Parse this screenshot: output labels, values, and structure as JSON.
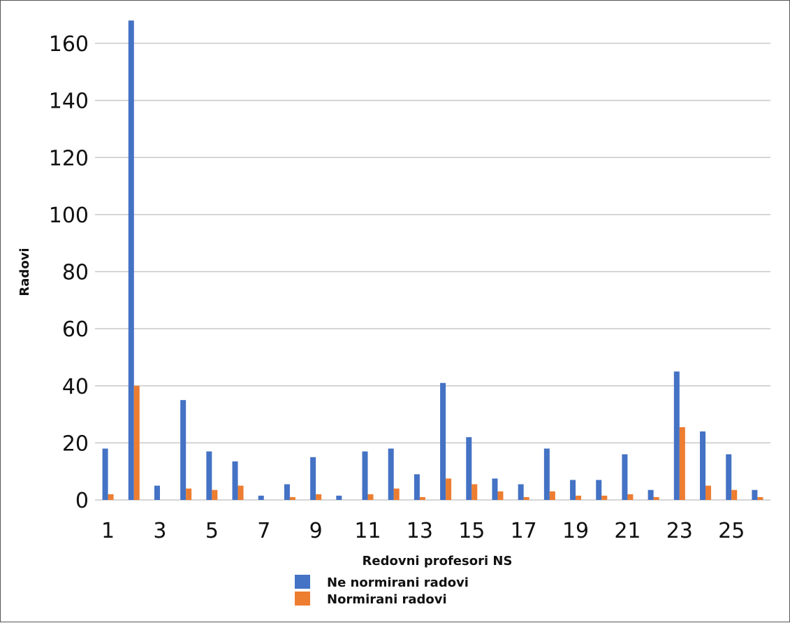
{
  "chart_data": {
    "type": "bar",
    "title": "",
    "xlabel": "Redovni profesori NS",
    "ylabel": "Radovi",
    "ylim": [
      0,
      170
    ],
    "yticks": [
      0,
      20,
      40,
      60,
      80,
      100,
      120,
      140,
      160
    ],
    "categories": [
      1,
      2,
      3,
      4,
      5,
      6,
      7,
      8,
      9,
      10,
      11,
      12,
      13,
      14,
      15,
      16,
      17,
      18,
      19,
      20,
      21,
      22,
      23,
      24,
      25,
      26
    ],
    "x_tick_labels": [
      "1",
      "3",
      "5",
      "7",
      "9",
      "11",
      "13",
      "15",
      "17",
      "19",
      "21",
      "23",
      "25"
    ],
    "grid": true,
    "legend_position": "bottom-center",
    "series": [
      {
        "name": "Ne normirani radovi",
        "color": "#4472C4",
        "values": [
          18,
          168,
          5,
          35,
          17,
          13.5,
          1.5,
          5.5,
          15,
          1.5,
          17,
          18,
          9,
          41,
          22,
          7.5,
          5.5,
          18,
          7,
          7,
          16,
          3.5,
          45,
          24,
          16,
          3.5
        ]
      },
      {
        "name": "Normirani radovi",
        "color": "#ED7D31",
        "values": [
          2,
          40,
          0,
          4,
          3.5,
          5,
          0,
          1,
          2,
          0,
          2,
          4,
          1,
          7.5,
          5.5,
          3,
          1,
          3,
          1.5,
          1.5,
          2,
          1,
          25.5,
          5,
          3.5,
          1
        ]
      }
    ]
  }
}
